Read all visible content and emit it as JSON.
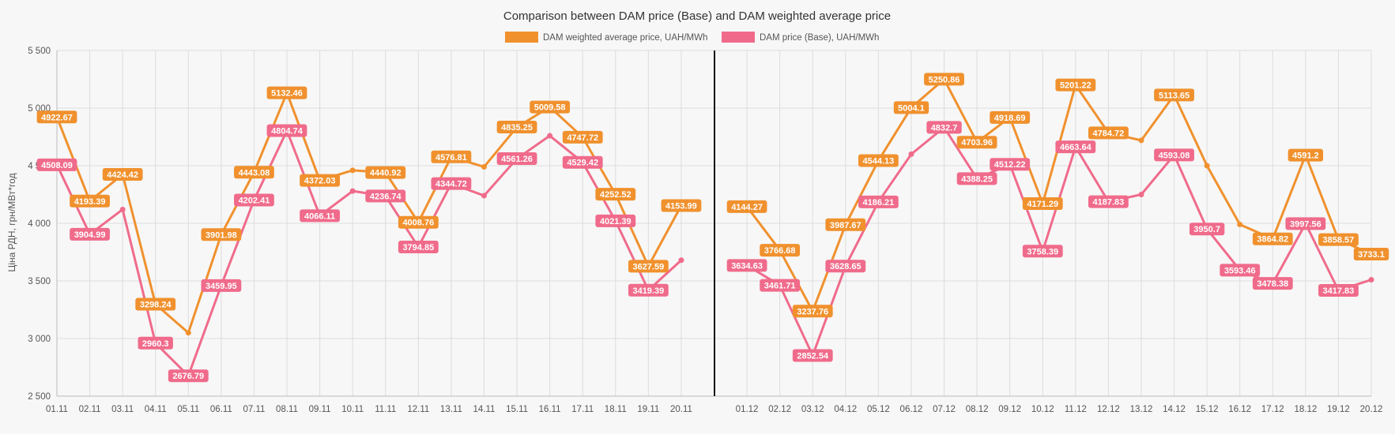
{
  "chart_data": {
    "type": "line",
    "title": "Comparison between DAM price (Base) and DAM weighted average price",
    "ylabel": "Ціна РДН, грн/МВт*год",
    "xlabel": "",
    "ylim": [
      2500,
      5500
    ],
    "yticks": [
      2500,
      3000,
      3500,
      4000,
      4500,
      5000,
      5500
    ],
    "ytick_labels": [
      "2 500",
      "3 000",
      "3 500",
      "4 000",
      "4 500",
      "5 000",
      "5 500"
    ],
    "grid": true,
    "legend_position": "top-center",
    "divider": "vertical line between 20.11 and 01.12",
    "categories": [
      "01.11",
      "02.11",
      "03.11",
      "04.11",
      "05.11",
      "06.11",
      "07.11",
      "08.11",
      "09.11",
      "10.11",
      "11.11",
      "12.11",
      "13.11",
      "14.11",
      "15.11",
      "16.11",
      "17.11",
      "18.11",
      "19.11",
      "20.11",
      "",
      "01.12",
      "02.12",
      "03.12",
      "04.12",
      "05.12",
      "06.12",
      "07.12",
      "08.12",
      "09.12",
      "10.12",
      "11.12",
      "12.12",
      "13.12",
      "14.12",
      "15.12",
      "16.12",
      "17.12",
      "18.12",
      "19.12",
      "20.12"
    ],
    "series": [
      {
        "name": "DAM weighted average price, UAH/MWh",
        "color": "#f0912e",
        "values": [
          4922.67,
          4193.39,
          4424.42,
          3298.24,
          3050,
          3901.98,
          4443.08,
          5132.46,
          4372.03,
          4460,
          4440.92,
          4008.76,
          4576.81,
          4490,
          4835.25,
          5009.58,
          4747.72,
          4252.52,
          3627.59,
          4153.99,
          null,
          4144.27,
          3766.68,
          3237.76,
          3987.67,
          4544.13,
          5004.1,
          5250.86,
          4703.96,
          4918.69,
          4171.29,
          5201.22,
          4784.72,
          4720,
          5113.65,
          4500,
          3990,
          3864.82,
          4591.2,
          3858.57,
          3733.1
        ],
        "labels": [
          "4922.67",
          "4193.39",
          "4424.42",
          "3298.24",
          "",
          "3901.98",
          "4443.08",
          "5132.46",
          "4372.03",
          "",
          "4440.92",
          "4008.76",
          "4576.81",
          "",
          "4835.25",
          "5009.58",
          "4747.72",
          "4252.52",
          "3627.59",
          "4153.99",
          "",
          "4144.27",
          "3766.68",
          "3237.76",
          "3987.67",
          "4544.13",
          "5004.1",
          "5250.86",
          "4703.96",
          "4918.69",
          "4171.29",
          "5201.22",
          "4784.72",
          "",
          "5113.65",
          "",
          "",
          "3864.82",
          "4591.2",
          "3858.57",
          "3733.1"
        ]
      },
      {
        "name": "DAM price (Base), UAH/MWh",
        "color": "#f06b8b",
        "values": [
          4508.09,
          3904.99,
          4120,
          2960.3,
          2676.79,
          3459.95,
          4202.41,
          4804.74,
          4066.11,
          4280,
          4236.74,
          3794.85,
          4344.72,
          4240,
          4561.26,
          4760,
          4529.42,
          4021.39,
          3419.39,
          3680,
          null,
          3634.63,
          3461.71,
          2852.54,
          3628.65,
          4186.21,
          4600,
          4832.7,
          4388.25,
          4512.22,
          3758.39,
          4663.64,
          4187.83,
          4250,
          4593.08,
          3950.7,
          3593.46,
          3478.38,
          3997.56,
          3417.83,
          3510
        ],
        "labels": [
          "4508.09",
          "3904.99",
          "",
          "2960.3",
          "2676.79",
          "3459.95",
          "4202.41",
          "4804.74",
          "4066.11",
          "",
          "4236.74",
          "3794.85",
          "4344.72",
          "",
          "4561.26",
          "",
          "4529.42",
          "4021.39",
          "3419.39",
          "",
          "",
          "3634.63",
          "3461.71",
          "2852.54",
          "3628.65",
          "4186.21",
          "",
          "4832.7",
          "4388.25",
          "4512.22",
          "3758.39",
          "4663.64",
          "4187.83",
          "",
          "4593.08",
          "3950.7",
          "3593.46",
          "3478.38",
          "3997.56",
          "3417.83",
          ""
        ]
      }
    ]
  }
}
